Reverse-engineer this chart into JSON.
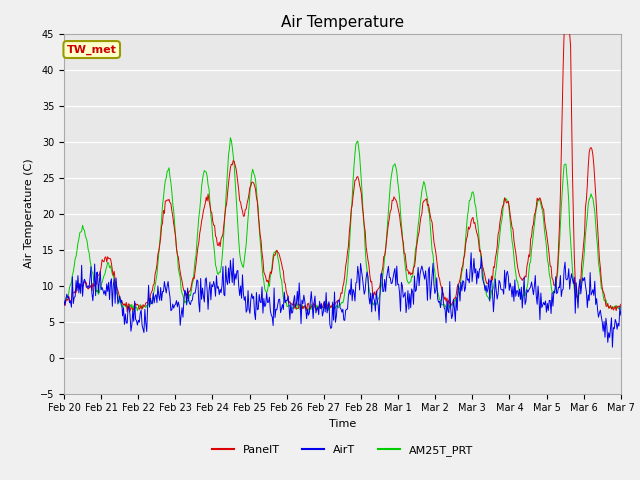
{
  "title": "Air Temperature",
  "ylabel": "Air Temperature (C)",
  "xlabel": "Time",
  "annotation_text": "TW_met",
  "annotation_color": "#cc0000",
  "annotation_bg": "#ffffcc",
  "annotation_border": "#999900",
  "ylim": [
    -5,
    45
  ],
  "yticks": [
    -5,
    0,
    5,
    10,
    15,
    20,
    25,
    30,
    35,
    40,
    45
  ],
  "bg_color": "#e8e8e8",
  "fig_bg_color": "#f0f0f0",
  "legend_labels": [
    "PanelT",
    "AirT",
    "AM25T_PRT"
  ],
  "legend_colors": [
    "#dd0000",
    "#0000ee",
    "#00cc00"
  ],
  "xtick_labels": [
    "Feb 20",
    "Feb 21",
    "Feb 22",
    "Feb 23",
    "Feb 24",
    "Feb 25",
    "Feb 26",
    "Feb 27",
    "Feb 28",
    "Mar 1",
    "Mar 2",
    "Mar 3",
    "Mar 4",
    "Mar 5",
    "Mar 6",
    "Mar 7"
  ],
  "num_points": 600
}
